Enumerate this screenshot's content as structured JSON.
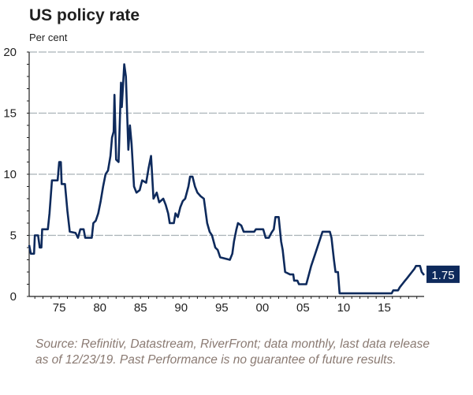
{
  "chart_data": {
    "type": "line",
    "title": "US policy rate",
    "ylabel": "Per cent",
    "xlabel": "",
    "ylim": [
      0,
      20
    ],
    "xlim": [
      1971.3,
      2019.9
    ],
    "yticks": [
      0,
      5,
      10,
      15,
      20
    ],
    "ytick_labels": [
      "0",
      "5",
      "10",
      "15",
      "20"
    ],
    "xticks": [
      1975,
      1980,
      1985,
      1990,
      1995,
      2000,
      2005,
      2010,
      2015
    ],
    "xtick_labels": [
      "75",
      "80",
      "85",
      "90",
      "95",
      "00",
      "05",
      "10",
      "15"
    ],
    "grid": true,
    "legend": "none",
    "end_label": "1.75",
    "colors": {
      "line": "#0e2a5c",
      "end_label_bg": "#0e2a5c",
      "grid": "#a9b2b7"
    },
    "series": [
      {
        "name": "US policy rate",
        "points": [
          [
            1971.3,
            4.2
          ],
          [
            1971.5,
            3.5
          ],
          [
            1971.9,
            3.5
          ],
          [
            1972.0,
            5.0
          ],
          [
            1972.4,
            5.0
          ],
          [
            1972.6,
            4.0
          ],
          [
            1972.8,
            4.0
          ],
          [
            1972.9,
            5.5
          ],
          [
            1973.6,
            5.5
          ],
          [
            1973.8,
            6.8
          ],
          [
            1974.1,
            9.5
          ],
          [
            1974.8,
            9.5
          ],
          [
            1975.0,
            11.0
          ],
          [
            1975.2,
            11.0
          ],
          [
            1975.3,
            9.2
          ],
          [
            1975.7,
            9.2
          ],
          [
            1976.0,
            7.0
          ],
          [
            1976.3,
            5.3
          ],
          [
            1977.0,
            5.2
          ],
          [
            1977.3,
            4.8
          ],
          [
            1977.6,
            5.5
          ],
          [
            1978.0,
            5.5
          ],
          [
            1978.2,
            4.8
          ],
          [
            1979.0,
            4.8
          ],
          [
            1979.2,
            6.0
          ],
          [
            1979.5,
            6.2
          ],
          [
            1979.8,
            6.8
          ],
          [
            1980.1,
            7.8
          ],
          [
            1980.4,
            9.0
          ],
          [
            1980.7,
            10.0
          ],
          [
            1981.0,
            10.3
          ],
          [
            1981.3,
            11.5
          ],
          [
            1981.5,
            13.0
          ],
          [
            1981.7,
            13.5
          ],
          [
            1981.8,
            16.5
          ],
          [
            1982.0,
            11.2
          ],
          [
            1982.3,
            11.0
          ],
          [
            1982.6,
            17.5
          ],
          [
            1982.7,
            15.5
          ],
          [
            1983.0,
            19.0
          ],
          [
            1983.2,
            18.0
          ],
          [
            1983.5,
            12.0
          ],
          [
            1983.7,
            14.0
          ],
          [
            1983.9,
            12.5
          ],
          [
            1984.2,
            9.0
          ],
          [
            1984.5,
            8.5
          ],
          [
            1984.9,
            8.7
          ],
          [
            1985.2,
            9.5
          ],
          [
            1985.7,
            9.3
          ],
          [
            1986.0,
            10.5
          ],
          [
            1986.3,
            11.5
          ],
          [
            1986.6,
            8.0
          ],
          [
            1987.0,
            8.5
          ],
          [
            1987.3,
            7.7
          ],
          [
            1987.8,
            8.0
          ],
          [
            1988.1,
            7.5
          ],
          [
            1988.4,
            6.8
          ],
          [
            1988.6,
            6.0
          ],
          [
            1989.1,
            6.0
          ],
          [
            1989.3,
            6.8
          ],
          [
            1989.6,
            6.5
          ],
          [
            1989.9,
            7.3
          ],
          [
            1990.2,
            7.8
          ],
          [
            1990.5,
            8.0
          ],
          [
            1990.9,
            9.0
          ],
          [
            1991.1,
            9.8
          ],
          [
            1991.4,
            9.8
          ],
          [
            1991.7,
            9.0
          ],
          [
            1992.0,
            8.5
          ],
          [
            1992.4,
            8.2
          ],
          [
            1992.8,
            8.0
          ],
          [
            1993.2,
            6.0
          ],
          [
            1993.5,
            5.3
          ],
          [
            1993.8,
            5.0
          ],
          [
            1994.2,
            4.0
          ],
          [
            1994.5,
            3.8
          ],
          [
            1994.8,
            3.2
          ],
          [
            1996.0,
            3.0
          ],
          [
            1996.3,
            3.5
          ],
          [
            1996.5,
            4.5
          ],
          [
            1996.8,
            5.5
          ],
          [
            1997.0,
            6.0
          ],
          [
            1997.4,
            5.8
          ],
          [
            1997.7,
            5.3
          ],
          [
            1999.0,
            5.3
          ],
          [
            1999.2,
            5.5
          ],
          [
            2000.1,
            5.5
          ],
          [
            2000.4,
            4.8
          ],
          [
            2000.8,
            4.8
          ],
          [
            2001.1,
            5.2
          ],
          [
            2001.4,
            5.5
          ],
          [
            2001.6,
            6.5
          ],
          [
            2002.0,
            6.5
          ],
          [
            2002.3,
            4.5
          ],
          [
            2002.5,
            3.8
          ],
          [
            2002.8,
            2.0
          ],
          [
            2003.4,
            1.8
          ],
          [
            2003.8,
            1.8
          ],
          [
            2003.9,
            1.3
          ],
          [
            2004.3,
            1.3
          ],
          [
            2004.5,
            1.0
          ],
          [
            2005.4,
            1.0
          ],
          [
            2005.6,
            1.5
          ],
          [
            2006.0,
            2.5
          ],
          [
            2006.5,
            3.5
          ],
          [
            2007.0,
            4.5
          ],
          [
            2007.4,
            5.3
          ],
          [
            2008.3,
            5.3
          ],
          [
            2008.5,
            4.8
          ],
          [
            2008.8,
            3.0
          ],
          [
            2009.0,
            2.0
          ],
          [
            2009.3,
            2.0
          ],
          [
            2009.5,
            0.25
          ],
          [
            2015.9,
            0.25
          ],
          [
            2016.1,
            0.5
          ],
          [
            2016.7,
            0.5
          ],
          [
            2016.9,
            0.75
          ],
          [
            2017.2,
            1.0
          ],
          [
            2017.5,
            1.25
          ],
          [
            2017.8,
            1.5
          ],
          [
            2018.1,
            1.75
          ],
          [
            2018.4,
            2.0
          ],
          [
            2018.7,
            2.25
          ],
          [
            2018.9,
            2.5
          ],
          [
            2019.4,
            2.5
          ],
          [
            2019.6,
            2.0
          ],
          [
            2019.9,
            1.75
          ]
        ]
      }
    ]
  },
  "footer": {
    "source": "Source: Refinitiv, Datastream, RiverFront; data monthly, last data release as of 12/23/19. Past Performance is no guarantee of future results."
  }
}
